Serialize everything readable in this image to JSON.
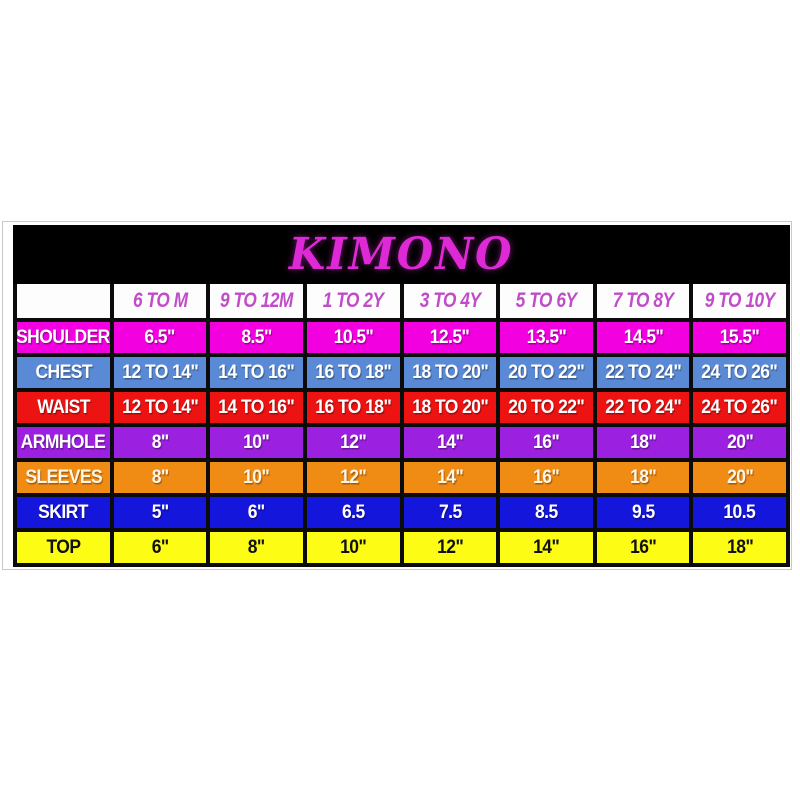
{
  "chart_data": {
    "type": "table",
    "title": "KIMONO",
    "columns": [
      "",
      "6 TO M",
      "9 TO 12M",
      "1 TO 2Y",
      "3 TO 4Y",
      "5 TO 6Y",
      "7 TO 8Y",
      "9 TO 10Y"
    ],
    "rows": [
      {
        "label": "SHOULDER",
        "values": [
          "6.5\"",
          "8.5\"",
          "10.5\"",
          "12.5\"",
          "13.5\"",
          "14.5\"",
          "15.5\""
        ],
        "bg": "#f200e0",
        "fg": "#ffffff"
      },
      {
        "label": "CHEST",
        "values": [
          "12 TO 14\"",
          "14 TO 16\"",
          "16 TO 18\"",
          "18 TO 20\"",
          "20 TO 22\"",
          "22 TO 24\"",
          "24 TO 26\""
        ],
        "bg": "#5a8ad6",
        "fg": "#ffffff"
      },
      {
        "label": "WAIST",
        "values": [
          "12 TO 14\"",
          "14 TO 16\"",
          "16 TO 18\"",
          "18 TO 20\"",
          "20 TO 22\"",
          "22 TO 24\"",
          "24 TO 26\""
        ],
        "bg": "#ee1313",
        "fg": "#ffffff"
      },
      {
        "label": "ARMHOLE",
        "values": [
          "8\"",
          "10\"",
          "12\"",
          "14\"",
          "16\"",
          "18\"",
          "20\""
        ],
        "bg": "#9c20e0",
        "fg": "#ffffff"
      },
      {
        "label": "SLEEVES",
        "values": [
          "8\"",
          "10\"",
          "12\"",
          "14\"",
          "16\"",
          "18\"",
          "20\""
        ],
        "bg": "#f08c14",
        "fg": "#fdf6e8"
      },
      {
        "label": "SKIRT",
        "values": [
          "5\"",
          "6\"",
          "6.5",
          "7.5",
          "8.5",
          "9.5",
          "10.5"
        ],
        "bg": "#1416dc",
        "fg": "#ffffff"
      },
      {
        "label": "TOP",
        "values": [
          "6\"",
          "8\"",
          "10\"",
          "12\"",
          "14\"",
          "16\"",
          "18\""
        ],
        "bg": "#fcfc14",
        "fg": "#111111"
      }
    ],
    "layout": {
      "header_row_bg": "#fdfdfd",
      "header_text_color": "#c04cc8",
      "title_bar_bg": "#000000",
      "title_color": "#de2ad6",
      "grid_border_color": "#0b0b0b"
    }
  }
}
